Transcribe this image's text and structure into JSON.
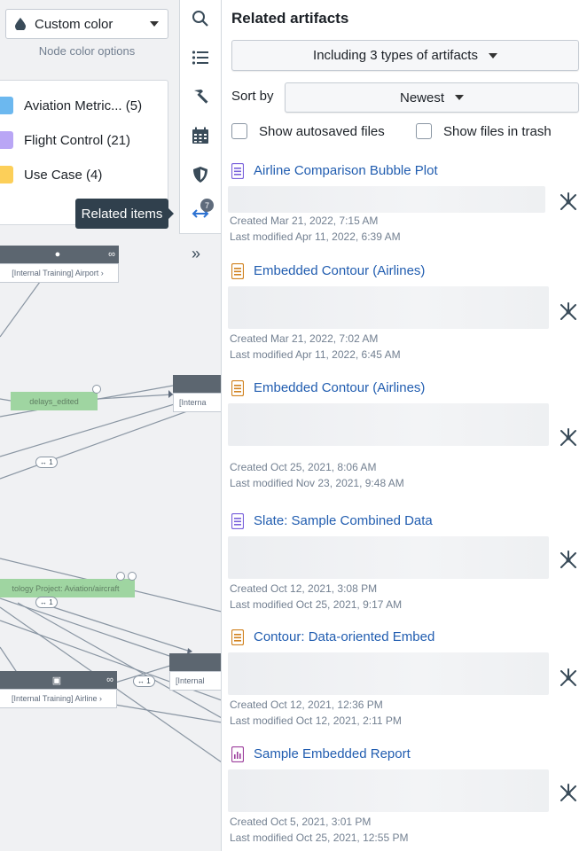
{
  "graph": {
    "color_select": "Custom color",
    "color_options_label": "Node color options",
    "legend": [
      {
        "label": "Aviation Metric... (5)",
        "color": "#6cb8ef"
      },
      {
        "label": "Flight Control (21)",
        "color": "#b9a6f5"
      },
      {
        "label": "Use Case (4)",
        "color": "#fccf59"
      }
    ],
    "tooltip": "Related items",
    "nodes": {
      "airport": "[Internal Training] Airport",
      "airline": "[Internal Training] Airline",
      "internal_a": "[Interna",
      "internal_b": "[Internal"
    },
    "green_nodes": {
      "delays": "delays_edited",
      "ontology": "tology Project: Aviation/aircraft"
    },
    "link_pills": [
      "↔ 1",
      "↔ 1",
      "↔ 1"
    ]
  },
  "toolbar": {
    "badge": "7",
    "icons": [
      "search-icon",
      "list-icon",
      "hammer-icon",
      "calendar-icon",
      "shield-icon",
      "related-arrows-icon"
    ]
  },
  "panel": {
    "title": "Related artifacts",
    "types_button": "Including 3 types of artifacts",
    "sort_label": "Sort by",
    "sort_value": "Newest",
    "show_autosaved": "Show autosaved files",
    "show_trash": "Show files in trash",
    "artifacts": [
      {
        "title": "Airline Comparison Bubble Plot",
        "type": "slate",
        "created": "Created Mar 21, 2022, 7:15 AM",
        "modified": "Last modified Apr 11, 2022, 6:39 AM"
      },
      {
        "title": "Embedded Contour (Airlines)",
        "type": "contour",
        "created": "Created Mar 21, 2022, 7:02 AM",
        "modified": "Last modified Apr 11, 2022, 6:45 AM"
      },
      {
        "title": "Embedded Contour (Airlines)",
        "type": "contour",
        "created": "Created Oct 25, 2021, 8:06 AM",
        "modified": "Last modified Nov 23, 2021, 9:48 AM"
      },
      {
        "title": "Slate: Sample Combined Data",
        "type": "slate",
        "created": "Created Oct 12, 2021, 3:08 PM",
        "modified": "Last modified Oct 25, 2021, 9:17 AM"
      },
      {
        "title": "Contour: Data-oriented Embed",
        "type": "contour",
        "created": "Created Oct 12, 2021, 12:36 PM",
        "modified": "Last modified Oct 12, 2021, 2:11 PM"
      },
      {
        "title": "Sample Embedded Report",
        "type": "report",
        "created": "Created Oct 5, 2021, 3:01 PM",
        "modified": "Last modified Oct 25, 2021, 12:55 PM"
      }
    ]
  }
}
